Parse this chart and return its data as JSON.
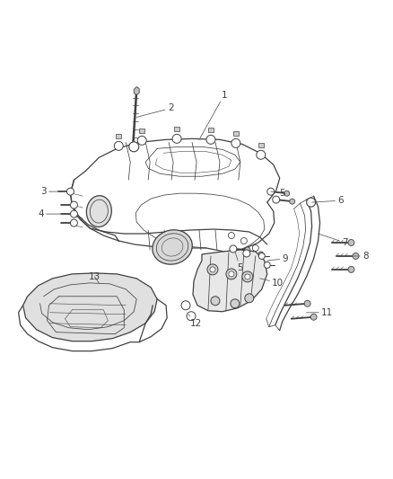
{
  "background_color": "#ffffff",
  "line_color": "#404040",
  "label_color": "#404040",
  "figsize": [
    4.38,
    5.33
  ],
  "dpi": 100,
  "lw_main": 0.9,
  "lw_thin": 0.55,
  "lw_detail": 0.4,
  "font_size": 7.5,
  "manifold_color": "#e8e8e8",
  "part_color": "#d8d8d8"
}
